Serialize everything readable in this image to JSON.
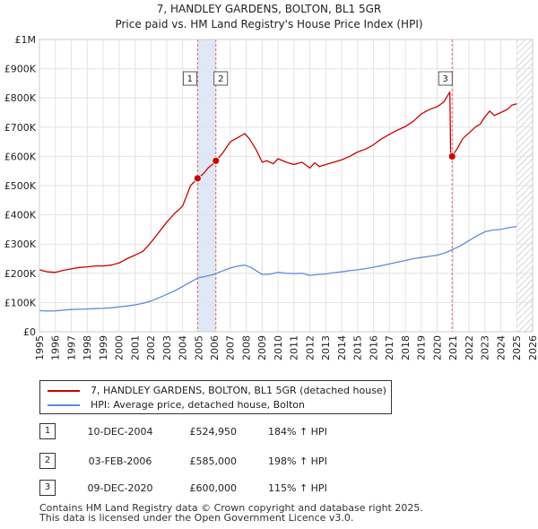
{
  "chart_data": {
    "type": "line",
    "title": "7, HANDLEY GARDENS, BOLTON, BL1 5GR",
    "subtitle": "Price paid vs. HM Land Registry's House Price Index (HPI)",
    "xlim": [
      1995,
      2026
    ],
    "ylim": [
      0,
      1000000
    ],
    "x_ticks": [
      1995,
      1996,
      1997,
      1998,
      1999,
      2000,
      2001,
      2002,
      2003,
      2004,
      2005,
      2006,
      2007,
      2008,
      2009,
      2010,
      2011,
      2012,
      2013,
      2014,
      2015,
      2016,
      2017,
      2018,
      2019,
      2020,
      2021,
      2022,
      2023,
      2024,
      2025,
      2026
    ],
    "x_tick_labels": [
      "1995",
      "1996",
      "1997",
      "1998",
      "1999",
      "2000",
      "2001",
      "2002",
      "2003",
      "2004",
      "2005",
      "2006",
      "2007",
      "2008",
      "2009",
      "2010",
      "2011",
      "2012",
      "2013",
      "2014",
      "2015",
      "2016",
      "2017",
      "2018",
      "2019",
      "2020",
      "2021",
      "2022",
      "2023",
      "2024",
      "2025",
      "2026"
    ],
    "y_ticks": [
      0,
      100000,
      200000,
      300000,
      400000,
      500000,
      600000,
      700000,
      800000,
      900000,
      1000000
    ],
    "y_tick_labels": [
      "£0",
      "£100K",
      "£200K",
      "£300K",
      "£400K",
      "£500K",
      "£600K",
      "£700K",
      "£800K",
      "£900K",
      "£1M"
    ],
    "grid": true,
    "series": [
      {
        "name": "7, HANDLEY GARDENS, BOLTON, BL1 5GR (detached house)",
        "color": "#cc0000",
        "x": [
          1995.0,
          1995.5,
          1996.0,
          1996.5,
          1997.0,
          1997.5,
          1998.0,
          1998.5,
          1999.0,
          1999.5,
          2000.0,
          2000.5,
          2001.0,
          2001.5,
          2002.0,
          2002.5,
          2003.0,
          2003.5,
          2004.0,
          2004.5,
          2004.94,
          2005.3,
          2005.6,
          2005.92,
          2006.09,
          2006.5,
          2007.0,
          2007.5,
          2007.9,
          2008.2,
          2008.6,
          2009.0,
          2009.3,
          2009.7,
          2010.0,
          2010.5,
          2011.0,
          2011.5,
          2012.0,
          2012.3,
          2012.6,
          2013.0,
          2013.5,
          2014.0,
          2014.5,
          2015.0,
          2015.5,
          2016.0,
          2016.5,
          2017.0,
          2017.5,
          2018.0,
          2018.5,
          2019.0,
          2019.5,
          2020.0,
          2020.4,
          2020.8,
          2020.85,
          2020.94,
          2021.0,
          2021.3,
          2021.6,
          2022.0,
          2022.4,
          2022.7,
          2023.0,
          2023.3,
          2023.6,
          2024.0,
          2024.4,
          2024.7,
          2025.0
        ],
        "values": [
          212000,
          205000,
          203000,
          210000,
          215000,
          220000,
          222000,
          225000,
          225000,
          228000,
          235000,
          250000,
          262000,
          275000,
          305000,
          340000,
          375000,
          405000,
          430000,
          500000,
          524950,
          540000,
          560000,
          575000,
          585000,
          610000,
          650000,
          665000,
          678000,
          660000,
          625000,
          580000,
          585000,
          575000,
          592000,
          580000,
          572000,
          580000,
          560000,
          578000,
          565000,
          572000,
          580000,
          588000,
          600000,
          615000,
          625000,
          640000,
          660000,
          675000,
          690000,
          702000,
          720000,
          745000,
          760000,
          770000,
          785000,
          820000,
          600000,
          600000,
          605000,
          630000,
          660000,
          680000,
          700000,
          710000,
          735000,
          755000,
          740000,
          750000,
          760000,
          775000,
          780000
        ]
      },
      {
        "name": "HPI: Average price, detached house, Bolton",
        "color": "#5b8ed6",
        "x": [
          1995.0,
          1995.5,
          1996.0,
          1996.5,
          1997.0,
          1997.5,
          1998.0,
          1998.5,
          1999.0,
          1999.5,
          2000.0,
          2000.5,
          2001.0,
          2001.5,
          2002.0,
          2002.5,
          2003.0,
          2003.5,
          2004.0,
          2004.5,
          2005.0,
          2005.5,
          2006.0,
          2006.5,
          2007.0,
          2007.5,
          2007.9,
          2008.3,
          2008.7,
          2009.0,
          2009.5,
          2010.0,
          2010.5,
          2011.0,
          2011.5,
          2012.0,
          2012.5,
          2013.0,
          2013.5,
          2014.0,
          2014.5,
          2015.0,
          2015.5,
          2016.0,
          2016.5,
          2017.0,
          2017.5,
          2018.0,
          2018.5,
          2019.0,
          2019.5,
          2020.0,
          2020.5,
          2021.0,
          2021.5,
          2022.0,
          2022.5,
          2023.0,
          2023.5,
          2024.0,
          2024.5,
          2025.0
        ],
        "values": [
          72000,
          71000,
          71500,
          74000,
          76000,
          77000,
          78000,
          79000,
          80000,
          82000,
          85000,
          88000,
          92000,
          97000,
          105000,
          116000,
          128000,
          140000,
          155000,
          170000,
          185000,
          190000,
          197000,
          208000,
          218000,
          225000,
          228000,
          220000,
          206000,
          196000,
          197000,
          203000,
          200000,
          199000,
          200000,
          193000,
          196000,
          198000,
          202000,
          205000,
          209000,
          212000,
          216000,
          221000,
          226000,
          232000,
          238000,
          244000,
          250000,
          254000,
          258000,
          262000,
          270000,
          282000,
          295000,
          312000,
          328000,
          342000,
          348000,
          350000,
          356000,
          360000
        ]
      }
    ],
    "sales": [
      {
        "num": "1",
        "x": 2004.94,
        "value": 524950
      },
      {
        "num": "2",
        "x": 2006.09,
        "value": 585000
      },
      {
        "num": "3",
        "x": 2020.94,
        "value": 600000
      }
    ],
    "shaded_spans": [
      [
        2004.94,
        2006.09
      ]
    ],
    "hatched_from": 2025.0
  },
  "legend": {
    "property_label": "7, HANDLEY GARDENS, BOLTON, BL1 5GR (detached house)",
    "hpi_label": "HPI: Average price, detached house, Bolton",
    "property_color": "#cc0000",
    "hpi_color": "#5b8ed6"
  },
  "transactions": [
    {
      "num": "1",
      "date": "10-DEC-2004",
      "price": "£524,950",
      "hpi": "184% ↑ HPI"
    },
    {
      "num": "2",
      "date": "03-FEB-2006",
      "price": "£585,000",
      "hpi": "198% ↑ HPI"
    },
    {
      "num": "3",
      "date": "09-DEC-2020",
      "price": "£600,000",
      "hpi": "115% ↑ HPI"
    }
  ],
  "footer": {
    "line1": "Contains HM Land Registry data © Crown copyright and database right 2025.",
    "line2": "This data is licensed under the Open Government Licence v3.0."
  }
}
